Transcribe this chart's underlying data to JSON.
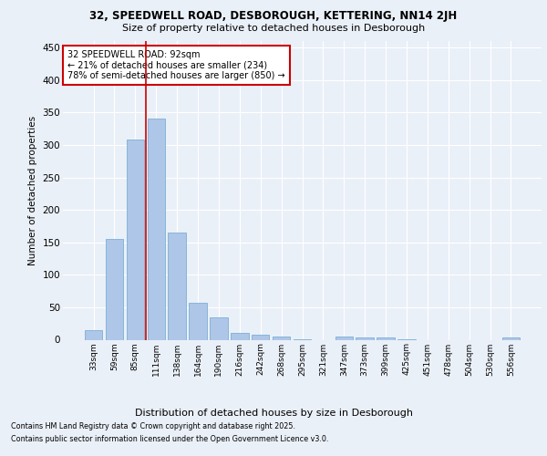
{
  "title_line1": "32, SPEEDWELL ROAD, DESBOROUGH, KETTERING, NN14 2JH",
  "title_line2": "Size of property relative to detached houses in Desborough",
  "xlabel": "Distribution of detached houses by size in Desborough",
  "ylabel": "Number of detached properties",
  "categories": [
    "33sqm",
    "59sqm",
    "85sqm",
    "111sqm",
    "138sqm",
    "164sqm",
    "190sqm",
    "216sqm",
    "242sqm",
    "268sqm",
    "295sqm",
    "321sqm",
    "347sqm",
    "373sqm",
    "399sqm",
    "425sqm",
    "451sqm",
    "478sqm",
    "504sqm",
    "530sqm",
    "556sqm"
  ],
  "values": [
    15,
    155,
    308,
    340,
    165,
    57,
    35,
    10,
    8,
    5,
    1,
    0,
    5,
    4,
    3,
    1,
    0,
    0,
    0,
    0,
    3
  ],
  "bar_color": "#aec6e8",
  "bar_edge_color": "#7bafd4",
  "background_color": "#eaf0f8",
  "grid_color": "#ffffff",
  "vline_color": "#cc0000",
  "vline_x": 2.5,
  "annotation_box_text": "32 SPEEDWELL ROAD: 92sqm\n← 21% of detached houses are smaller (234)\n78% of semi-detached houses are larger (850) →",
  "annotation_box_color": "#cc0000",
  "footer_line1": "Contains HM Land Registry data © Crown copyright and database right 2025.",
  "footer_line2": "Contains public sector information licensed under the Open Government Licence v3.0.",
  "ylim": [
    0,
    460
  ],
  "yticks": [
    0,
    50,
    100,
    150,
    200,
    250,
    300,
    350,
    400,
    450
  ],
  "title1_fontsize": 8.5,
  "title2_fontsize": 8.0
}
